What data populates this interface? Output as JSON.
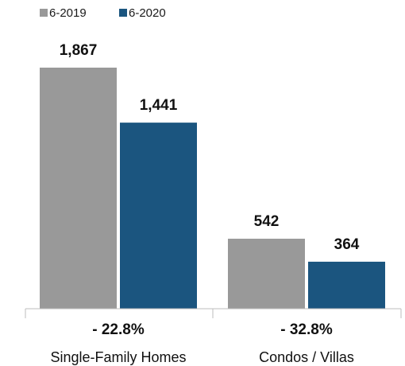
{
  "colors": {
    "series_2019": "#999999",
    "series_2020": "#1b557f",
    "axis": "#bdbdbd",
    "text": "#111111"
  },
  "chart_data": {
    "type": "bar",
    "categories": [
      "Single-Family Homes",
      "Condos / Villas"
    ],
    "series": [
      {
        "name": "6-2019",
        "values": [
          1867,
          542
        ],
        "value_labels": [
          "1,867",
          "542"
        ]
      },
      {
        "name": "6-2020",
        "values": [
          1441,
          364
        ],
        "value_labels": [
          "1,441",
          "364"
        ]
      }
    ],
    "changes": [
      "- 22.8%",
      "- 32.8%"
    ],
    "title": "",
    "xlabel": "",
    "ylabel": "",
    "ylim": [
      0,
      1867
    ],
    "grid": false,
    "legend_position": "top-left"
  }
}
